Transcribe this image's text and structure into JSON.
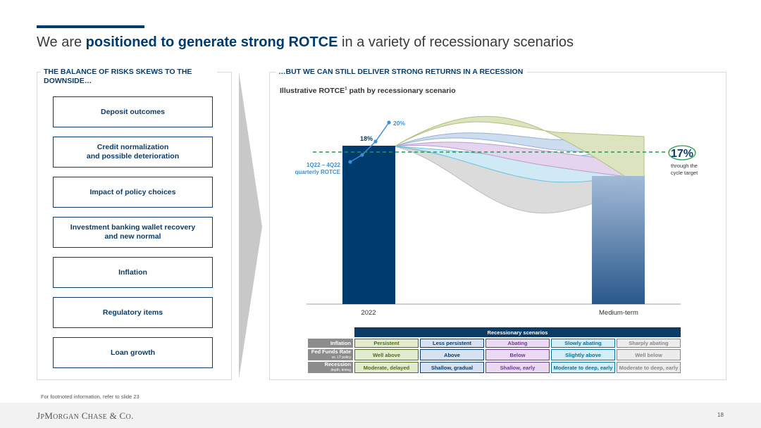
{
  "slide": {
    "title_pre": "We are ",
    "title_bold": "positioned to generate strong ROTCE",
    "title_post": " in a variety of recessionary scenarios",
    "left_heading": "THE BALANCE OF RISKS SKEWS TO THE DOWNSIDE…",
    "right_heading": "…BUT WE CAN STILL DELIVER STRONG RETURNS IN A RECESSION",
    "chart_subtitle": "Illustrative ROTCE",
    "chart_subtitle_sup": "1",
    "chart_subtitle_post": " path by recessionary scenario",
    "footnote": "For footnoted information, refer to slide 23",
    "logo": "JPMORGAN CHASE & CO.",
    "page_number": "18"
  },
  "risks": [
    "Deposit outcomes",
    "Credit normalization\nand possible deterioration",
    "Impact of policy choices",
    "Investment banking wallet recovery\nand new normal",
    "Inflation",
    "Regulatory items",
    "Loan growth"
  ],
  "chart_data": {
    "type": "bar",
    "categories": [
      "2022",
      "Medium-term"
    ],
    "values": [
      18,
      17
    ],
    "bar_colors": [
      "#003b70",
      "#6d8fb5"
    ],
    "bar_label": "18%",
    "quarterly_label": "1Q22 – 4Q22\nquarterly ROTCE",
    "quarterly_peak_label": "20%",
    "target_value": 17,
    "target_label": "17%",
    "target_caption": "through the\ncycle target",
    "target_color": "#1e9a4a",
    "scenario_colors": [
      "#a9bc6a",
      "#7fa6d0",
      "#b48cc8",
      "#3aaed8",
      "#b8b8b8"
    ],
    "table": {
      "caption": "Recessionary scenarios",
      "rows": [
        {
          "label": "Inflation",
          "sub": "",
          "cells": [
            "Persistent",
            "Less persistent",
            "Abating",
            "Slowly abating",
            "Sharply abating"
          ]
        },
        {
          "label": "Fed Funds Rate",
          "sub": "vs. LT policy",
          "cells": [
            "Well above",
            "Above",
            "Below",
            "Slightly above",
            "Well below"
          ]
        },
        {
          "label": "Recession",
          "sub": "depth, timing",
          "cells": [
            "Moderate, delayed",
            "Shallow, gradual",
            "Shallow, early",
            "Moderate to deep, early",
            "Moderate to deep, early"
          ]
        }
      ],
      "cell_fills": [
        "#e3ebcf",
        "#d6e2f1",
        "#ead9f2",
        "#d4eef7",
        "#ececec"
      ],
      "cell_text": [
        "#4f6b1f",
        "#0b3c68",
        "#6b3a8c",
        "#0b6f99",
        "#888888"
      ]
    }
  }
}
